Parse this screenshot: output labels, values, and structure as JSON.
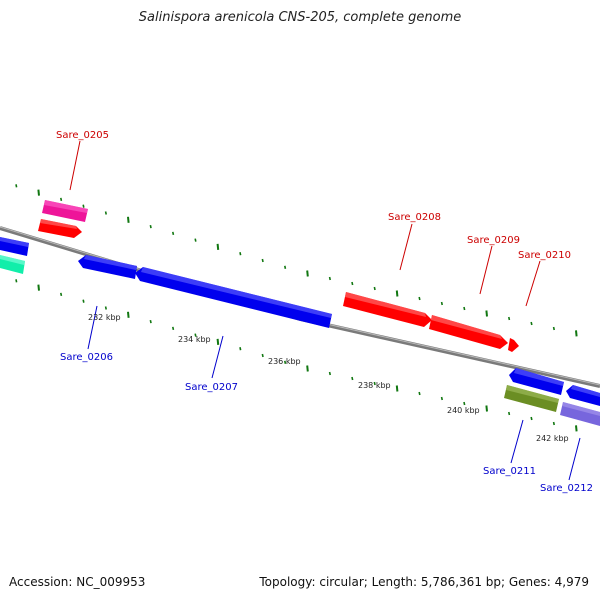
{
  "title": "Salinispora arenicola CNS-205, complete genome",
  "footer": {
    "accession": "Accession: NC_009953",
    "summary": "Topology: circular; Length: 5,786,361 bp; Genes: 4,979"
  },
  "colors": {
    "red": "#ff0000",
    "blue": "#0000ee",
    "magenta": "#ee1599",
    "teal": "#11eeaa",
    "olive": "#6b8e23",
    "purple": "#7766dd",
    "forward_label": "#cc0000",
    "reverse_label": "#0000cc",
    "tick": "#117711",
    "backbone": "#888888"
  },
  "kbp_labels": [
    "232 kbp",
    "234 kbp",
    "236 kbp",
    "238 kbp",
    "240 kbp",
    "242 kbp"
  ],
  "gene_labels": [
    {
      "text": "Sare_0205",
      "strand": "forward"
    },
    {
      "text": "Sare_0206",
      "strand": "reverse"
    },
    {
      "text": "Sare_0207",
      "strand": "reverse"
    },
    {
      "text": "Sare_0208",
      "strand": "forward"
    },
    {
      "text": "Sare_0209",
      "strand": "forward"
    },
    {
      "text": "Sare_0210",
      "strand": "forward"
    },
    {
      "text": "Sare_0211",
      "strand": "reverse"
    },
    {
      "text": "Sare_0212",
      "strand": "reverse"
    }
  ]
}
